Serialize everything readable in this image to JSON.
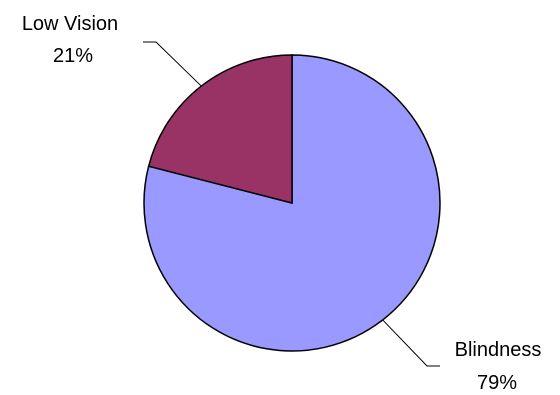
{
  "chart_data": {
    "type": "pie",
    "slices": [
      {
        "label": "Blindness",
        "percent_label": "79%",
        "value": 79,
        "color": "#9999ff"
      },
      {
        "label": "Low Vision",
        "percent_label": "21%",
        "value": 21,
        "color": "#993366"
      }
    ],
    "start_angle_deg": 0,
    "direction": "clockwise",
    "legend": "none",
    "title": ""
  }
}
